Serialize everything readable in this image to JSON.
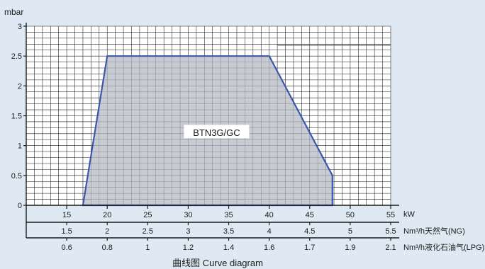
{
  "chart_data": {
    "type": "area",
    "title": "曲线图 Curve diagram",
    "ylabel": "mbar",
    "xlabel": "kW",
    "xlim": [
      10,
      55
    ],
    "ylim": [
      0,
      3
    ],
    "grid": true,
    "x_ticks": [
      15,
      20,
      25,
      30,
      35,
      40,
      45,
      50,
      55
    ],
    "y_ticks": [
      {
        "value": 0,
        "label": "0"
      },
      {
        "value": 0.5,
        "label": "0.5"
      },
      {
        "value": 1,
        "label": "1"
      },
      {
        "value": 1.5,
        "label": "1.5"
      },
      {
        "value": 2,
        "label": "2"
      },
      {
        "value": 2.5,
        "label": "2.5"
      },
      {
        "value": 3,
        "label": "3"
      }
    ],
    "secondary_axes": [
      {
        "unit": "Nm³/h天然气(NG)",
        "ticks": [
          {
            "x": 15,
            "label": "1.5"
          },
          {
            "x": 20,
            "label": "2"
          },
          {
            "x": 25,
            "label": "2.5"
          },
          {
            "x": 30,
            "label": "3"
          },
          {
            "x": 35,
            "label": "3.5"
          },
          {
            "x": 40,
            "label": "4"
          },
          {
            "x": 45,
            "label": "4.5"
          },
          {
            "x": 50,
            "label": "5"
          },
          {
            "x": 55,
            "label": "5.5"
          }
        ]
      },
      {
        "unit": "Nm³/h液化石油气(LPG)",
        "ticks": [
          {
            "x": 15,
            "label": "0.6"
          },
          {
            "x": 20,
            "label": "0.8"
          },
          {
            "x": 25,
            "label": "1"
          },
          {
            "x": 30,
            "label": "1.2"
          },
          {
            "x": 35,
            "label": "1.4"
          },
          {
            "x": 40,
            "label": "1.6"
          },
          {
            "x": 45,
            "label": "1.7"
          },
          {
            "x": 50,
            "label": "1.9"
          },
          {
            "x": 55,
            "label": "2.1"
          }
        ]
      }
    ],
    "series": [
      {
        "name": "BTN3G/GC",
        "points": [
          {
            "x": 17,
            "y": 0
          },
          {
            "x": 20,
            "y": 2.5
          },
          {
            "x": 40,
            "y": 2.5
          },
          {
            "x": 47.8,
            "y": 0.5
          },
          {
            "x": 47.8,
            "y": 0
          }
        ],
        "fill": "#b3b9c0",
        "stroke": "#3b57ad",
        "label_position": {
          "x": 33.5,
          "y": 1.2
        }
      }
    ],
    "reference_line": {
      "x1": 41,
      "x2": 55,
      "y": 2.68
    }
  }
}
